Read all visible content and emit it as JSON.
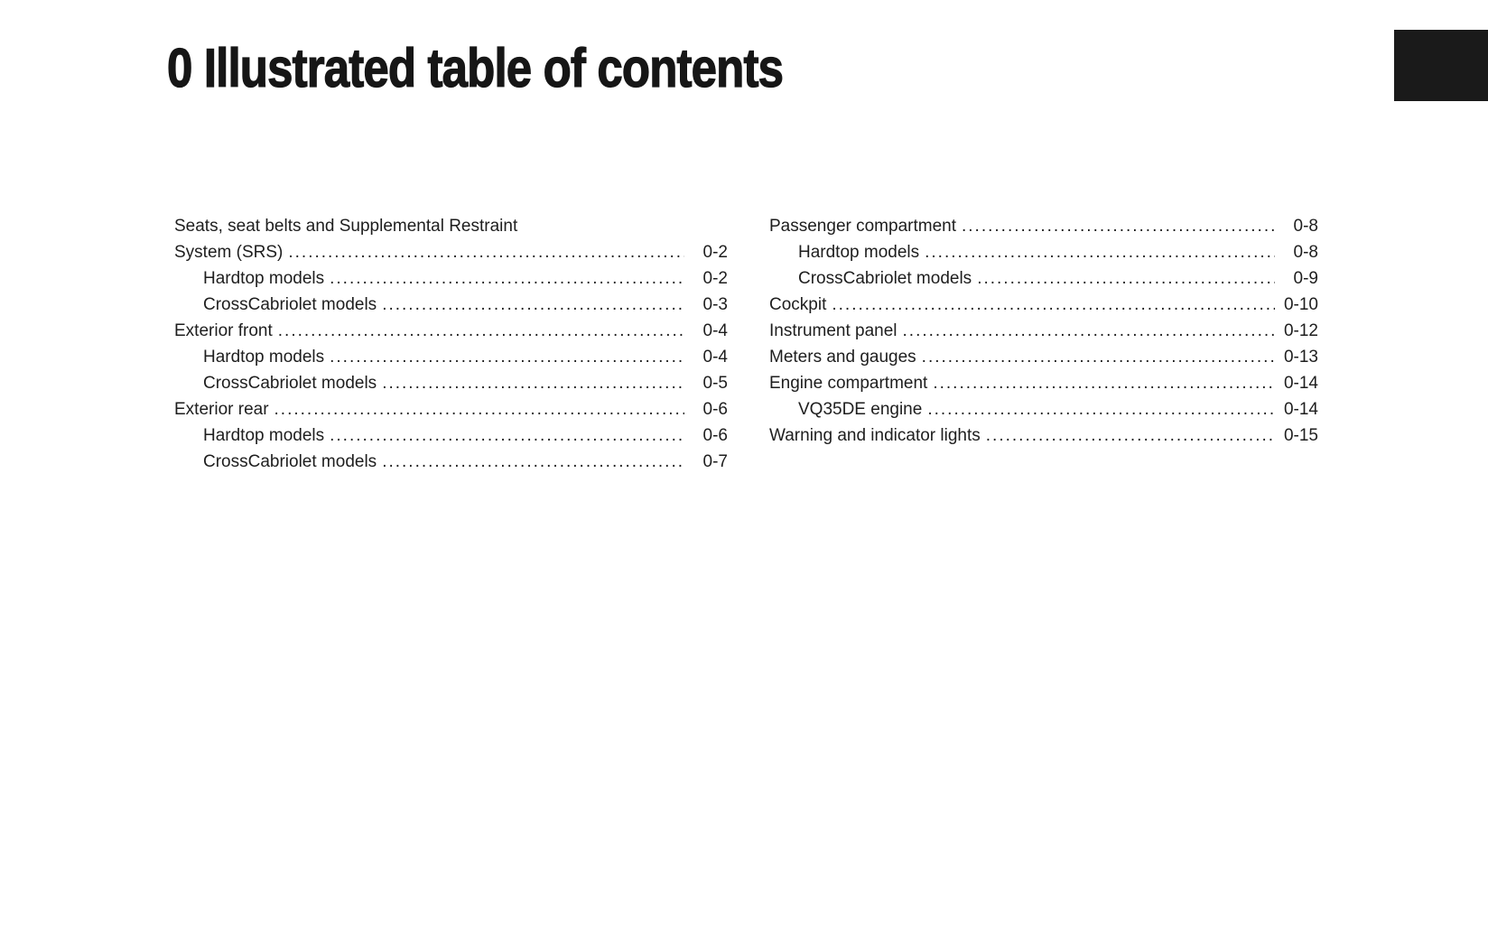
{
  "page": {
    "title": "0 Illustrated table of contents"
  },
  "colors": {
    "background": "#ffffff",
    "text": "#1e1e1e",
    "chapter_tab": "#1a1a1a"
  },
  "toc": {
    "left_column": [
      {
        "prefix": "Seats, seat belts and Supplemental Restraint",
        "label": "System (SRS)",
        "page": "0-2",
        "indent": 0
      },
      {
        "label": "Hardtop models",
        "page": "0-2",
        "indent": 1
      },
      {
        "label": "CrossCabriolet models",
        "page": "0-3",
        "indent": 1
      },
      {
        "label": "Exterior front",
        "page": "0-4",
        "indent": 0
      },
      {
        "label": "Hardtop models",
        "page": "0-4",
        "indent": 1
      },
      {
        "label": "CrossCabriolet models",
        "page": "0-5",
        "indent": 1
      },
      {
        "label": "Exterior rear",
        "page": "0-6",
        "indent": 0
      },
      {
        "label": "Hardtop models",
        "page": "0-6",
        "indent": 1
      },
      {
        "label": "CrossCabriolet models",
        "page": "0-7",
        "indent": 1
      }
    ],
    "right_column": [
      {
        "label": "Passenger compartment",
        "page": "0-8",
        "indent": 0
      },
      {
        "label": "Hardtop models",
        "page": "0-8",
        "indent": 1
      },
      {
        "label": "CrossCabriolet models",
        "page": "0-9",
        "indent": 1
      },
      {
        "label": "Cockpit",
        "page": "0-10",
        "indent": 0
      },
      {
        "label": "Instrument panel",
        "page": "0-12",
        "indent": 0
      },
      {
        "label": "Meters and gauges",
        "page": "0-13",
        "indent": 0
      },
      {
        "label": "Engine compartment",
        "page": "0-14",
        "indent": 0
      },
      {
        "label": "VQ35DE engine",
        "page": "0-14",
        "indent": 1
      },
      {
        "label": "Warning and indicator lights",
        "page": "0-15",
        "indent": 0
      }
    ]
  }
}
